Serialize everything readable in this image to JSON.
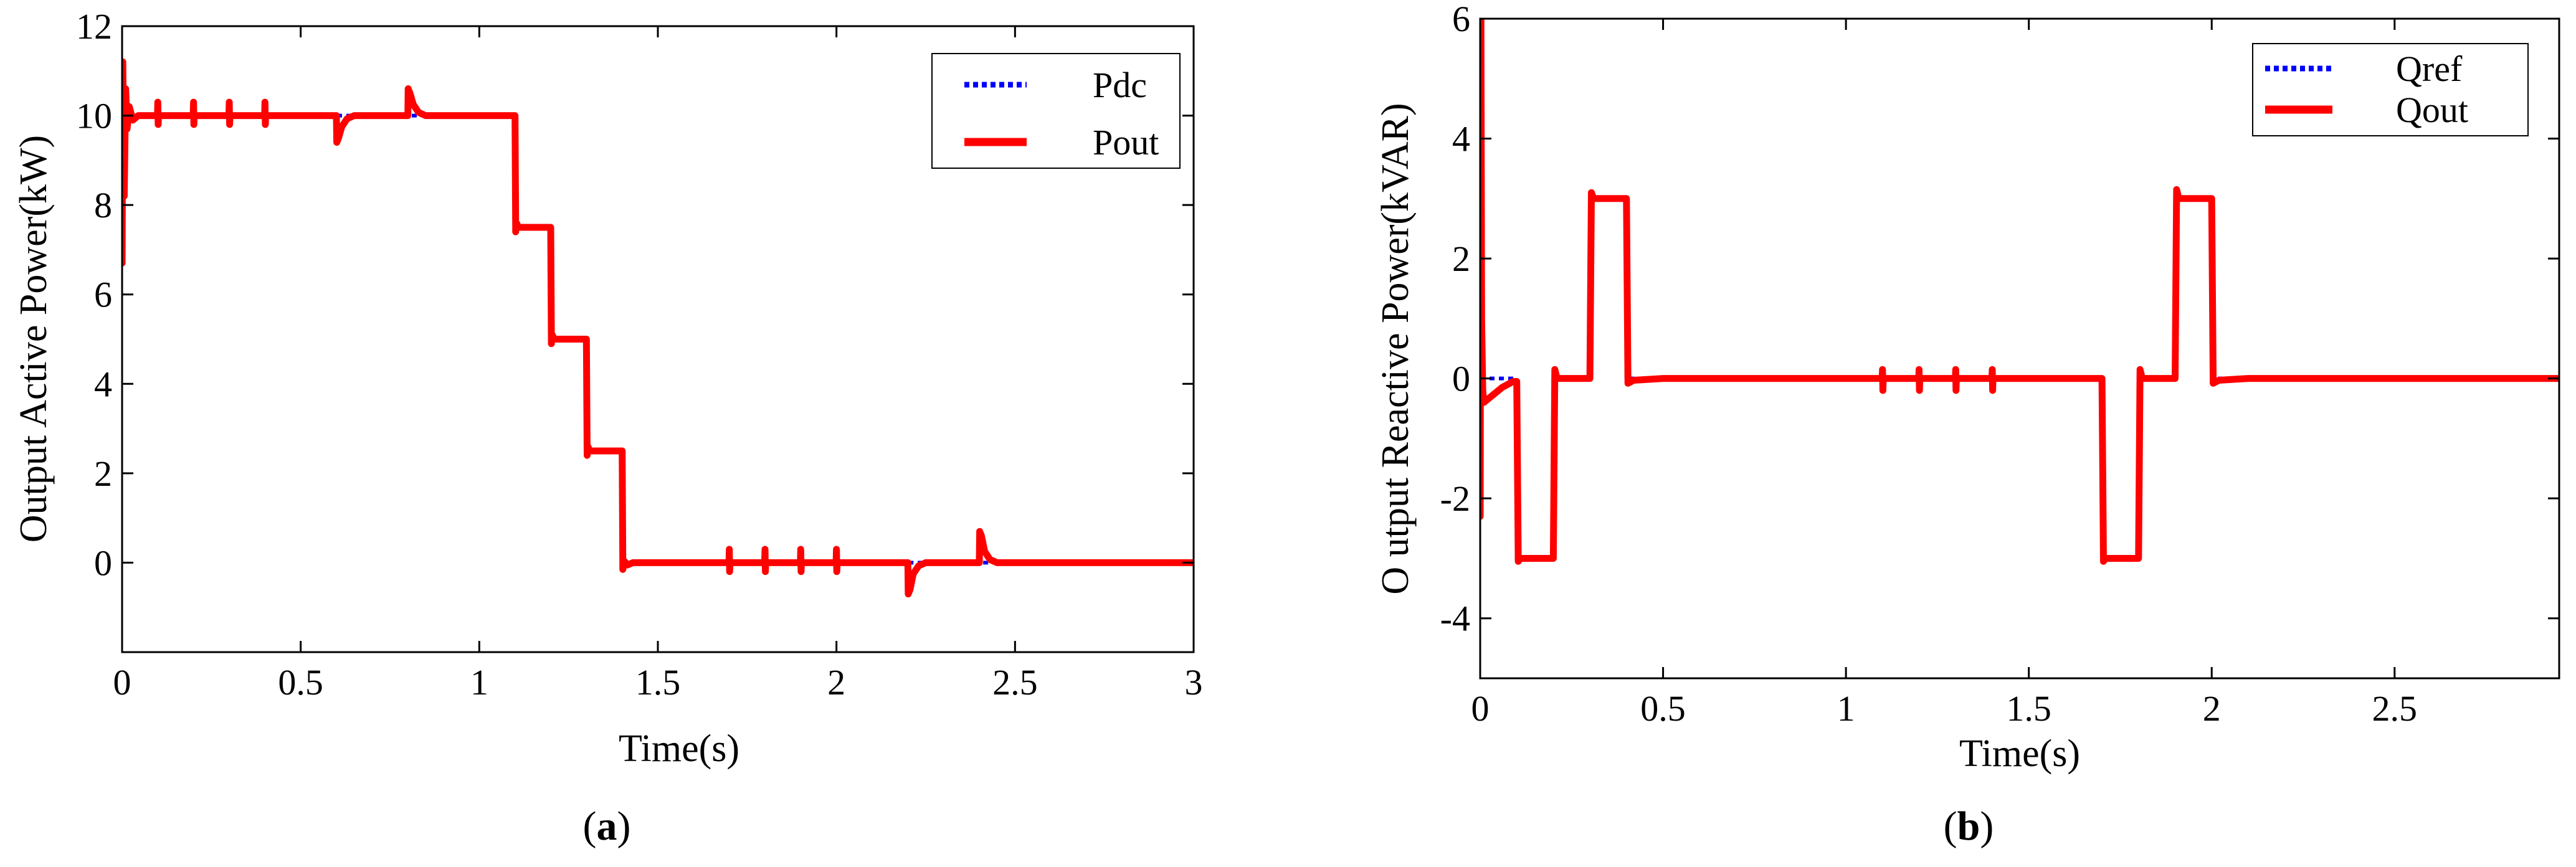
{
  "chart_data": [
    {
      "type": "line",
      "caption_letter": "a",
      "xlabel": "Time(s)",
      "ylabel": "Output Active Power(kW)",
      "xlim": [
        0,
        3
      ],
      "ylim": [
        -2,
        12
      ],
      "xticks": [
        0,
        0.5,
        1,
        1.5,
        2,
        2.5,
        3
      ],
      "xtick_labels": [
        "0",
        "0.5",
        "1",
        "1.5",
        "2",
        "2.5",
        "3"
      ],
      "yticks": [
        0,
        2,
        4,
        6,
        8,
        10,
        12
      ],
      "ytick_labels": [
        "0",
        "2",
        "4",
        "6",
        "8",
        "10",
        "12"
      ],
      "legend_position": "top-right",
      "series": [
        {
          "name": "Pdc",
          "color": "#0000ff",
          "style": "dotted",
          "x": [
            0,
            1.1,
            1.1,
            1.2,
            1.2,
            1.3,
            1.3,
            1.4,
            1.4,
            3
          ],
          "y": [
            10,
            10,
            7.5,
            7.5,
            5,
            5,
            2.5,
            2.5,
            0,
            0
          ]
        },
        {
          "name": "Pout",
          "color": "#ff0000",
          "style": "solid",
          "x": [
            0,
            0.002,
            0.006,
            0.01,
            0.014,
            0.02,
            0.03,
            0.045,
            0.099,
            0.1,
            0.101,
            0.102,
            0.199,
            0.2,
            0.201,
            0.202,
            0.299,
            0.3,
            0.301,
            0.302,
            0.399,
            0.4,
            0.401,
            0.402,
            0.6,
            0.601,
            0.606,
            0.615,
            0.63,
            0.65,
            0.8,
            0.801,
            0.806,
            0.815,
            0.83,
            0.85,
            1.1,
            1.102,
            1.104,
            1.11,
            1.2,
            1.202,
            1.204,
            1.21,
            1.3,
            1.302,
            1.304,
            1.31,
            1.4,
            1.402,
            1.404,
            1.415,
            1.43,
            1.699,
            1.7,
            1.701,
            1.702,
            1.799,
            1.8,
            1.801,
            1.802,
            1.899,
            1.9,
            1.901,
            1.902,
            1.999,
            2.0,
            2.001,
            2.002,
            2.2,
            2.201,
            2.206,
            2.215,
            2.23,
            2.25,
            2.4,
            2.401,
            2.406,
            2.415,
            2.43,
            2.45,
            3.0
          ],
          "y": [
            6.7,
            11.2,
            8.2,
            10.6,
            9.7,
            10.2,
            9.9,
            10.0,
            10.0,
            10.3,
            9.8,
            10.0,
            10.0,
            10.3,
            9.8,
            10.0,
            10.0,
            10.3,
            9.8,
            10.0,
            10.0,
            10.3,
            9.8,
            10.0,
            10.0,
            9.4,
            9.5,
            9.75,
            9.93,
            10.0,
            10.0,
            10.6,
            10.5,
            10.25,
            10.07,
            10.0,
            10.0,
            7.4,
            7.6,
            7.5,
            7.5,
            4.9,
            5.1,
            5.0,
            5.0,
            2.4,
            2.6,
            2.5,
            2.5,
            -0.15,
            0.05,
            -0.05,
            0.0,
            0.0,
            0.3,
            -0.2,
            0.0,
            0.0,
            0.3,
            -0.2,
            0.0,
            0.0,
            0.3,
            -0.2,
            0.0,
            0.0,
            0.3,
            -0.2,
            0.0,
            0.0,
            -0.7,
            -0.6,
            -0.25,
            -0.07,
            0.0,
            0.0,
            0.7,
            0.6,
            0.25,
            0.07,
            0.0,
            0.0
          ]
        }
      ]
    },
    {
      "type": "line",
      "caption_letter": "b",
      "xlabel": "Time(s)",
      "ylabel": "O utput Reactive Power(kVAR)",
      "xlim": [
        0,
        2.95
      ],
      "ylim": [
        -5,
        6
      ],
      "xticks": [
        0,
        0.5,
        1,
        1.5,
        2,
        2.5
      ],
      "xtick_labels": [
        "0",
        "0.5",
        "1",
        "1.5",
        "2",
        "2.5"
      ],
      "yticks": [
        -4,
        -2,
        0,
        2,
        4,
        6
      ],
      "ytick_labels": [
        "-4",
        "-2",
        "0",
        "2",
        "4",
        "6"
      ],
      "legend_position": "top-right",
      "series": [
        {
          "name": "Qref",
          "color": "#0000ff",
          "style": "dotted",
          "x": [
            0,
            0.1,
            0.1,
            0.2,
            0.2,
            0.3,
            0.3,
            0.4,
            0.4,
            1.7,
            1.7,
            1.8,
            1.8,
            1.9,
            1.9,
            2.0,
            2.0,
            2.95
          ],
          "y": [
            0,
            0,
            -3,
            -3,
            0,
            0,
            3,
            3,
            0,
            0,
            -3,
            -3,
            0,
            0,
            3,
            3,
            0,
            0
          ]
        },
        {
          "name": "Qout",
          "color": "#ff0000",
          "style": "solid",
          "x": [
            0,
            0.002,
            0.004,
            0.007,
            0.01,
            0.03,
            0.06,
            0.09,
            0.1,
            0.104,
            0.11,
            0.19,
            0.2,
            0.204,
            0.21,
            0.29,
            0.3,
            0.304,
            0.31,
            0.39,
            0.4,
            0.404,
            0.42,
            0.5,
            1.099,
            1.1,
            1.101,
            1.102,
            1.199,
            1.2,
            1.201,
            1.202,
            1.299,
            1.3,
            1.301,
            1.302,
            1.399,
            1.4,
            1.401,
            1.402,
            1.7,
            1.704,
            1.71,
            1.79,
            1.8,
            1.804,
            1.81,
            1.89,
            1.9,
            1.904,
            1.91,
            1.99,
            2.0,
            2.004,
            2.02,
            2.1,
            2.95
          ],
          "y": [
            -2.3,
            6.0,
            1.0,
            -0.2,
            -0.4,
            -0.3,
            -0.15,
            -0.05,
            -0.05,
            -3.05,
            -3.0,
            -3.0,
            -3.0,
            0.15,
            0.0,
            0.0,
            0.0,
            3.1,
            3.0,
            3.0,
            3.0,
            -0.08,
            -0.03,
            0.0,
            0.0,
            0.15,
            -0.2,
            0.0,
            0.0,
            0.15,
            -0.2,
            0.0,
            0.0,
            0.15,
            -0.2,
            0.0,
            0.0,
            0.15,
            -0.2,
            0.0,
            0.0,
            -3.05,
            -3.0,
            -3.0,
            -3.0,
            0.15,
            0.0,
            0.0,
            0.0,
            3.15,
            3.0,
            3.0,
            3.0,
            -0.08,
            -0.03,
            0.0,
            0.0
          ]
        }
      ]
    }
  ]
}
